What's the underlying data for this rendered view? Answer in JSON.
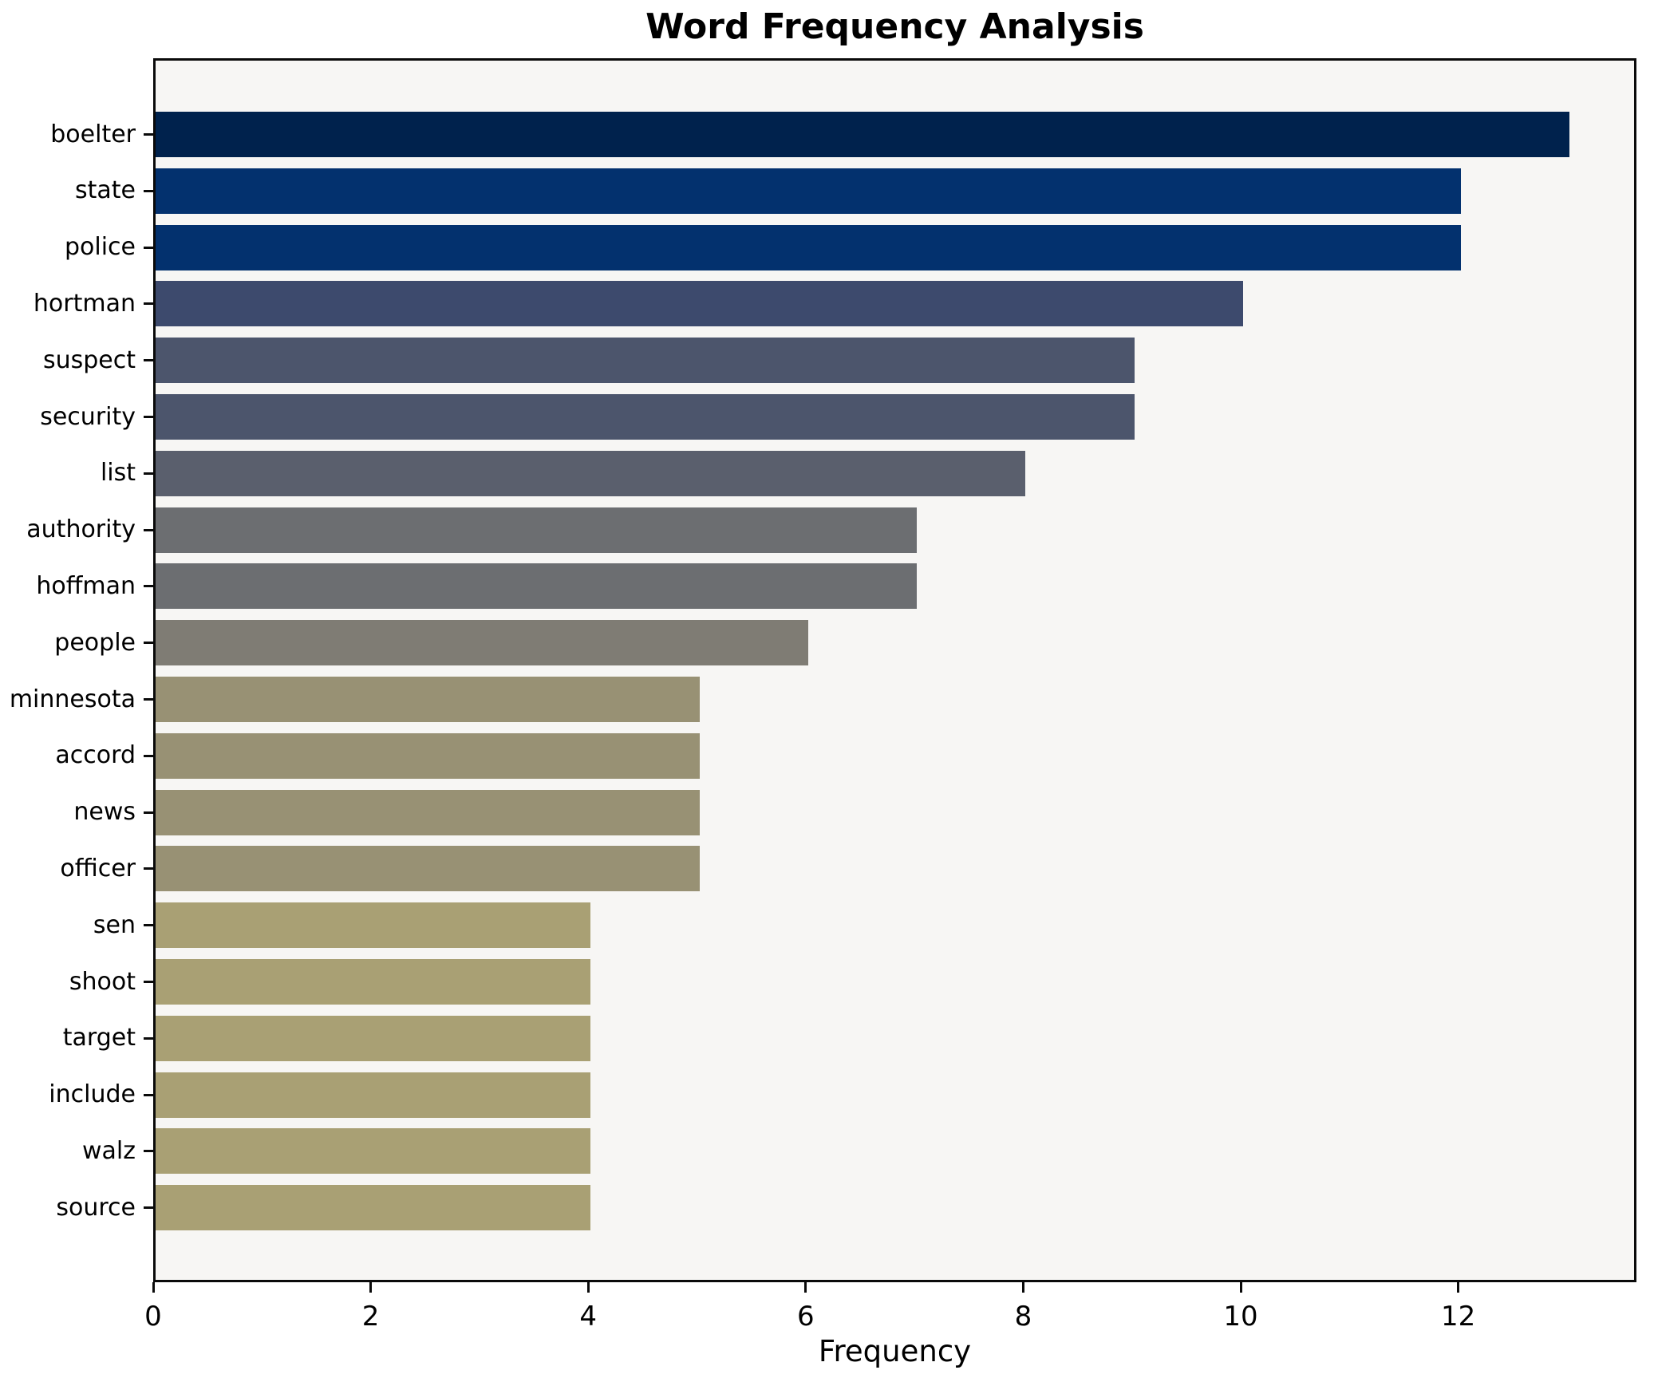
{
  "page": {
    "title": "Word Frequency Analysis"
  },
  "chart_data": {
    "type": "bar",
    "orientation": "horizontal",
    "title": "Word Frequency Analysis",
    "xlabel": "Frequency",
    "ylabel": "",
    "categories": [
      "boelter",
      "state",
      "police",
      "hortman",
      "suspect",
      "security",
      "list",
      "authority",
      "hoffman",
      "people",
      "minnesota",
      "accord",
      "news",
      "officer",
      "sen",
      "shoot",
      "target",
      "include",
      "walz",
      "source"
    ],
    "values": [
      13,
      12,
      12,
      10,
      9,
      9,
      8,
      7,
      7,
      6,
      5,
      5,
      5,
      5,
      4,
      4,
      4,
      4,
      4,
      4
    ],
    "bar_colors": [
      "#00224d",
      "#03316e",
      "#03316e",
      "#3d4a6d",
      "#4c556c",
      "#4c556c",
      "#5a5f6d",
      "#6c6e71",
      "#6c6e71",
      "#7f7c74",
      "#989174",
      "#989174",
      "#989174",
      "#989174",
      "#a9a074",
      "#a9a074",
      "#a9a074",
      "#a9a074",
      "#a9a074",
      "#a9a074"
    ],
    "x_ticks": [
      0,
      2,
      4,
      6,
      8,
      10,
      12
    ],
    "xlim": [
      0,
      13.64
    ],
    "grid": false,
    "legend": "none",
    "plot_bg": "#f7f6f4",
    "figure_bg": "#ffffff"
  }
}
